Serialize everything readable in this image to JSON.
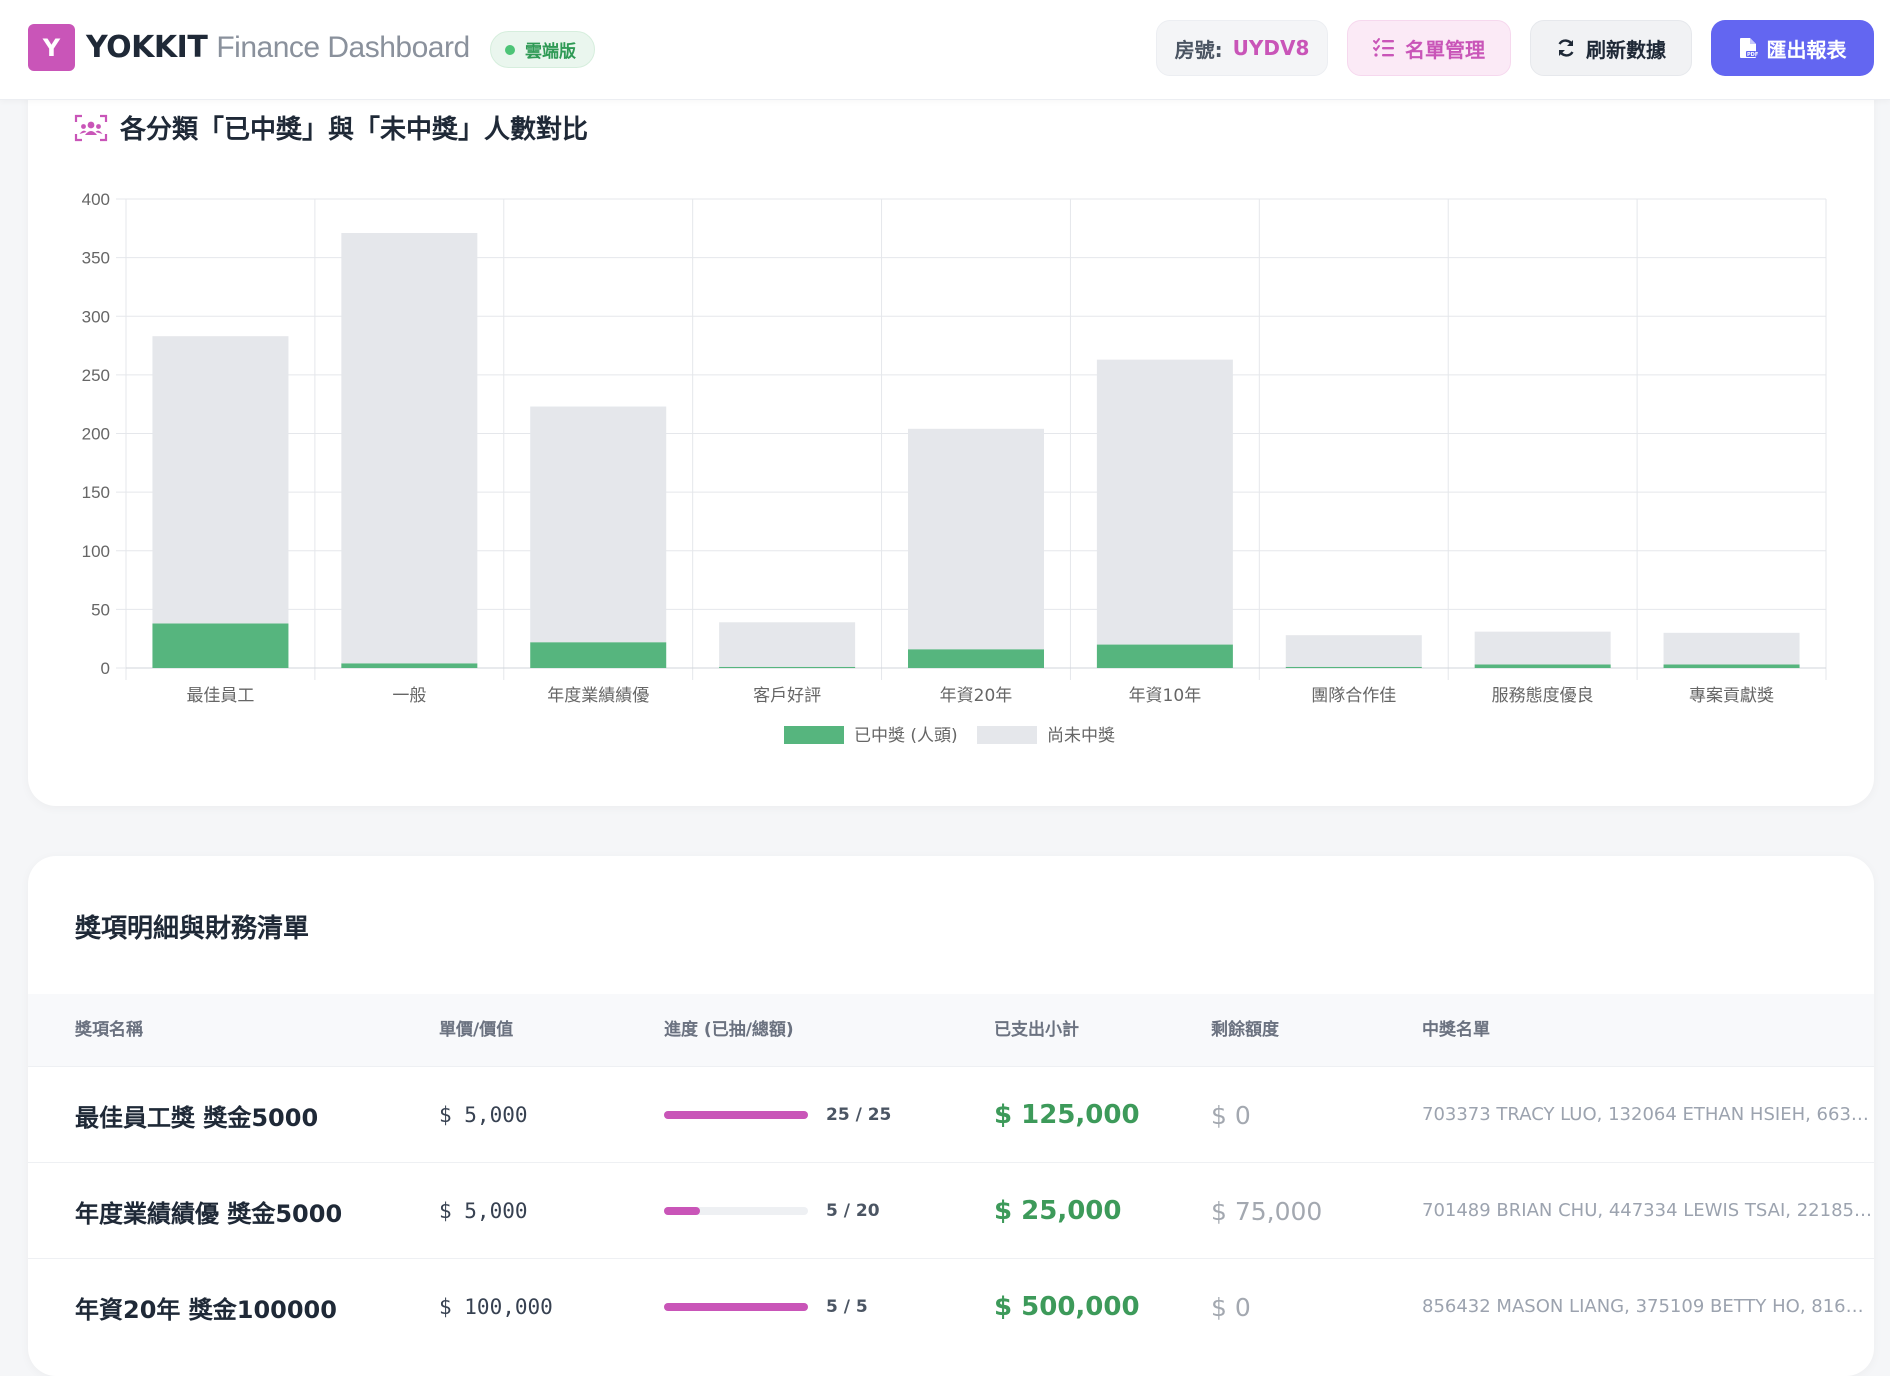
{
  "header": {
    "logo_letter": "Y",
    "brand_strong": "YOKKIT",
    "brand_light": "Finance Dashboard",
    "cloud_badge": "雲端版",
    "room_label": "房號:",
    "room_value": "UYDV8",
    "list_button": "名單管理",
    "refresh_button": "刷新數據",
    "export_button": "匯出報表"
  },
  "chart_section": {
    "title": "各分類「已中獎」與「未中獎」人數對比"
  },
  "chart_data": {
    "type": "bar",
    "stacked": true,
    "categories": [
      "最佳員工",
      "一般",
      "年度業績績優",
      "客戶好評",
      "年資20年",
      "年資10年",
      "團隊合作佳",
      "服務態度優良",
      "專案貢獻獎"
    ],
    "series": [
      {
        "name": "已中獎 (人頭)",
        "color": "#56b57e",
        "values": [
          38,
          4,
          22,
          1,
          16,
          20,
          1,
          3,
          3
        ]
      },
      {
        "name": "尚未中獎",
        "color": "#e5e7eb",
        "values": [
          245,
          367,
          201,
          38,
          188,
          243,
          27,
          28,
          27
        ]
      }
    ],
    "ylim": [
      0,
      400
    ],
    "yticks": [
      "0",
      "50",
      "100",
      "150",
      "200",
      "250",
      "300",
      "350",
      "400"
    ],
    "grid": true,
    "legend_position": "bottom"
  },
  "table": {
    "title": "獎項明細與財務清單",
    "headers": [
      "獎項名稱",
      "單價/價值",
      "進度 (已抽/總額)",
      "已支出小計",
      "剩餘額度",
      "中獎名單"
    ],
    "rows": [
      {
        "name": "最佳員工獎 獎金5000",
        "price": "$ 5,000",
        "progress": "25 / 25",
        "progress_ratio": 1.0,
        "spent": "$ 125,000",
        "remaining": "$ 0",
        "winners": "703373 TRACY LUO, 132064 ETHAN HSIEH, 663…"
      },
      {
        "name": "年度業績績優 獎金5000",
        "price": "$ 5,000",
        "progress": "5 / 20",
        "progress_ratio": 0.25,
        "spent": "$ 25,000",
        "remaining": "$ 75,000",
        "winners": "701489 BRIAN CHU, 447334 LEWIS TSAI, 22185…"
      },
      {
        "name": "年資20年 獎金100000",
        "price": "$ 100,000",
        "progress": "5 / 5",
        "progress_ratio": 1.0,
        "spent": "$ 500,000",
        "remaining": "$ 0",
        "winners": "856432 MASON LIANG, 375109 BETTY HO, 816…"
      }
    ]
  }
}
